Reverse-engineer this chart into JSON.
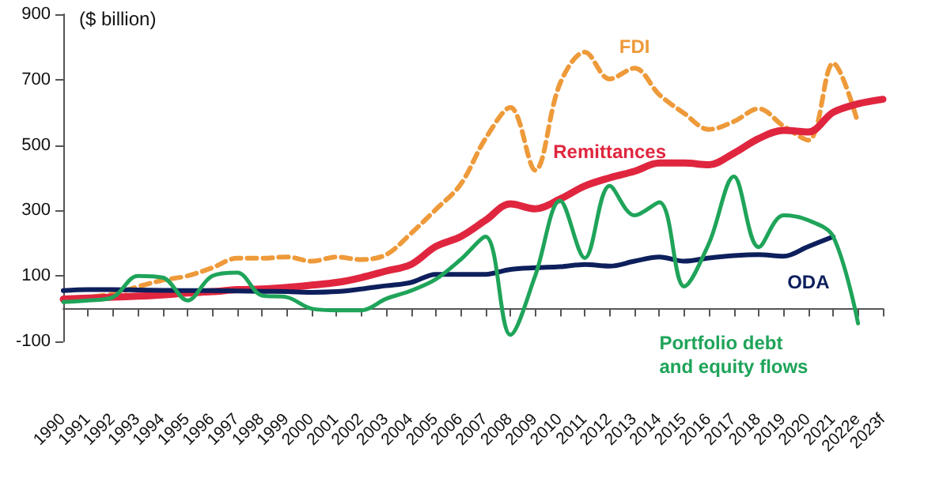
{
  "chart_data": {
    "type": "line",
    "ylabel": "($ billion)",
    "categories": [
      "1990",
      "1991",
      "1992",
      "1993",
      "1994",
      "1995",
      "1996",
      "1997",
      "1998",
      "1999",
      "2000",
      "2001",
      "2002",
      "2003",
      "2004",
      "2005",
      "2006",
      "2007",
      "2008",
      "2009",
      "2010",
      "2011",
      "2012",
      "2013",
      "2014",
      "2015",
      "2016",
      "2017",
      "2018",
      "2019",
      "2020",
      "2021",
      "2022e",
      "2023f"
    ],
    "series": [
      {
        "name": "FDI",
        "color": "#ee9a3a",
        "line_style": "dashed",
        "values": [
          25,
          35,
          45,
          67,
          87,
          100,
          125,
          154,
          154,
          158,
          145,
          158,
          150,
          165,
          230,
          303,
          380,
          520,
          615,
          423,
          688,
          784,
          702,
          735,
          654,
          597,
          548,
          572,
          611,
          558,
          515,
          750,
          567,
          null
        ]
      },
      {
        "name": "Remittances",
        "color": "#e0263f",
        "line_style": "solid",
        "values": [
          29,
          32,
          35,
          38,
          42,
          48,
          52,
          58,
          60,
          65,
          72,
          80,
          95,
          115,
          135,
          190,
          220,
          270,
          320,
          305,
          335,
          375,
          400,
          420,
          445,
          445,
          440,
          475,
          520,
          545,
          540,
          600,
          626,
          640
        ]
      },
      {
        "name": "ODA",
        "color": "#0d1f5c",
        "line_style": "solid",
        "values": [
          55,
          58,
          58,
          57,
          56,
          55,
          55,
          54,
          53,
          52,
          50,
          52,
          60,
          70,
          80,
          105,
          105,
          105,
          120,
          125,
          128,
          135,
          130,
          145,
          158,
          145,
          155,
          162,
          165,
          160,
          190,
          220,
          null,
          null
        ]
      },
      {
        "name": "Portfolio debt and equity flows",
        "color": "#1fa45a",
        "line_style": "solid",
        "values": [
          20,
          25,
          35,
          100,
          95,
          25,
          100,
          110,
          40,
          35,
          0,
          -5,
          -5,
          30,
          55,
          90,
          150,
          220,
          -80,
          100,
          330,
          155,
          375,
          285,
          325,
          68,
          200,
          404,
          188,
          285,
          270,
          220,
          -45,
          null
        ]
      }
    ],
    "ylim": [
      -100,
      900
    ],
    "yticks": [
      -100,
      100,
      300,
      500,
      700,
      900
    ],
    "grid": false,
    "legend": false,
    "marker": "none"
  }
}
